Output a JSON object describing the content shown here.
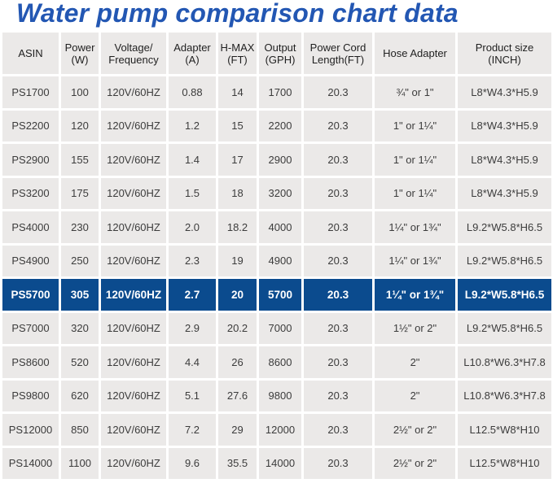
{
  "title": "Water pump comparison chart data",
  "colors": {
    "title": "#2357b3",
    "cell_background": "#ebe9e8",
    "highlight_row_background": "#0b4b8e",
    "highlight_row_text": "#ffffff"
  },
  "chart_data": {
    "type": "table",
    "title": "Water pump comparison chart data",
    "columns": [
      "ASIN",
      "Power\n(W)",
      "Voltage/\nFrequency",
      "Adapter\n(A)",
      "H-MAX\n(FT)",
      "Output\n(GPH)",
      "Power Cord\nLength(FT)",
      "Hose Adapter",
      "Product size\n(INCH)"
    ],
    "highlighted_row_index": 6,
    "rows": [
      [
        "PS1700",
        "100",
        "120V/60HZ",
        "0.88",
        "14",
        "1700",
        "20.3",
        "¾\" or 1\"",
        "L8*W4.3*H5.9"
      ],
      [
        "PS2200",
        "120",
        "120V/60HZ",
        "1.2",
        "15",
        "2200",
        "20.3",
        "1\" or 1¼\"",
        "L8*W4.3*H5.9"
      ],
      [
        "PS2900",
        "155",
        "120V/60HZ",
        "1.4",
        "17",
        "2900",
        "20.3",
        "1\" or 1¼\"",
        "L8*W4.3*H5.9"
      ],
      [
        "PS3200",
        "175",
        "120V/60HZ",
        "1.5",
        "18",
        "3200",
        "20.3",
        "1\" or 1¼\"",
        "L8*W4.3*H5.9"
      ],
      [
        "PS4000",
        "230",
        "120V/60HZ",
        "2.0",
        "18.2",
        "4000",
        "20.3",
        "1¼\" or 1¾\"",
        "L9.2*W5.8*H6.5"
      ],
      [
        "PS4900",
        "250",
        "120V/60HZ",
        "2.3",
        "19",
        "4900",
        "20.3",
        "1¼\" or 1¾\"",
        "L9.2*W5.8*H6.5"
      ],
      [
        "PS5700",
        "305",
        "120V/60HZ",
        "2.7",
        "20",
        "5700",
        "20.3",
        "1¼\" or 1¾\"",
        "L9.2*W5.8*H6.5"
      ],
      [
        "PS7000",
        "320",
        "120V/60HZ",
        "2.9",
        "20.2",
        "7000",
        "20.3",
        "1½\" or 2\"",
        "L9.2*W5.8*H6.5"
      ],
      [
        "PS8600",
        "520",
        "120V/60HZ",
        "4.4",
        "26",
        "8600",
        "20.3",
        "2\"",
        "L10.8*W6.3*H7.8"
      ],
      [
        "PS9800",
        "620",
        "120V/60HZ",
        "5.1",
        "27.6",
        "9800",
        "20.3",
        "2\"",
        "L10.8*W6.3*H7.8"
      ],
      [
        "PS12000",
        "850",
        "120V/60HZ",
        "7.2",
        "29",
        "12000",
        "20.3",
        "2½\" or 2\"",
        "L12.5*W8*H10"
      ],
      [
        "PS14000",
        "1100",
        "120V/60HZ",
        "9.6",
        "35.5",
        "14000",
        "20.3",
        "2½\" or 2\"",
        "L12.5*W8*H10"
      ]
    ]
  }
}
